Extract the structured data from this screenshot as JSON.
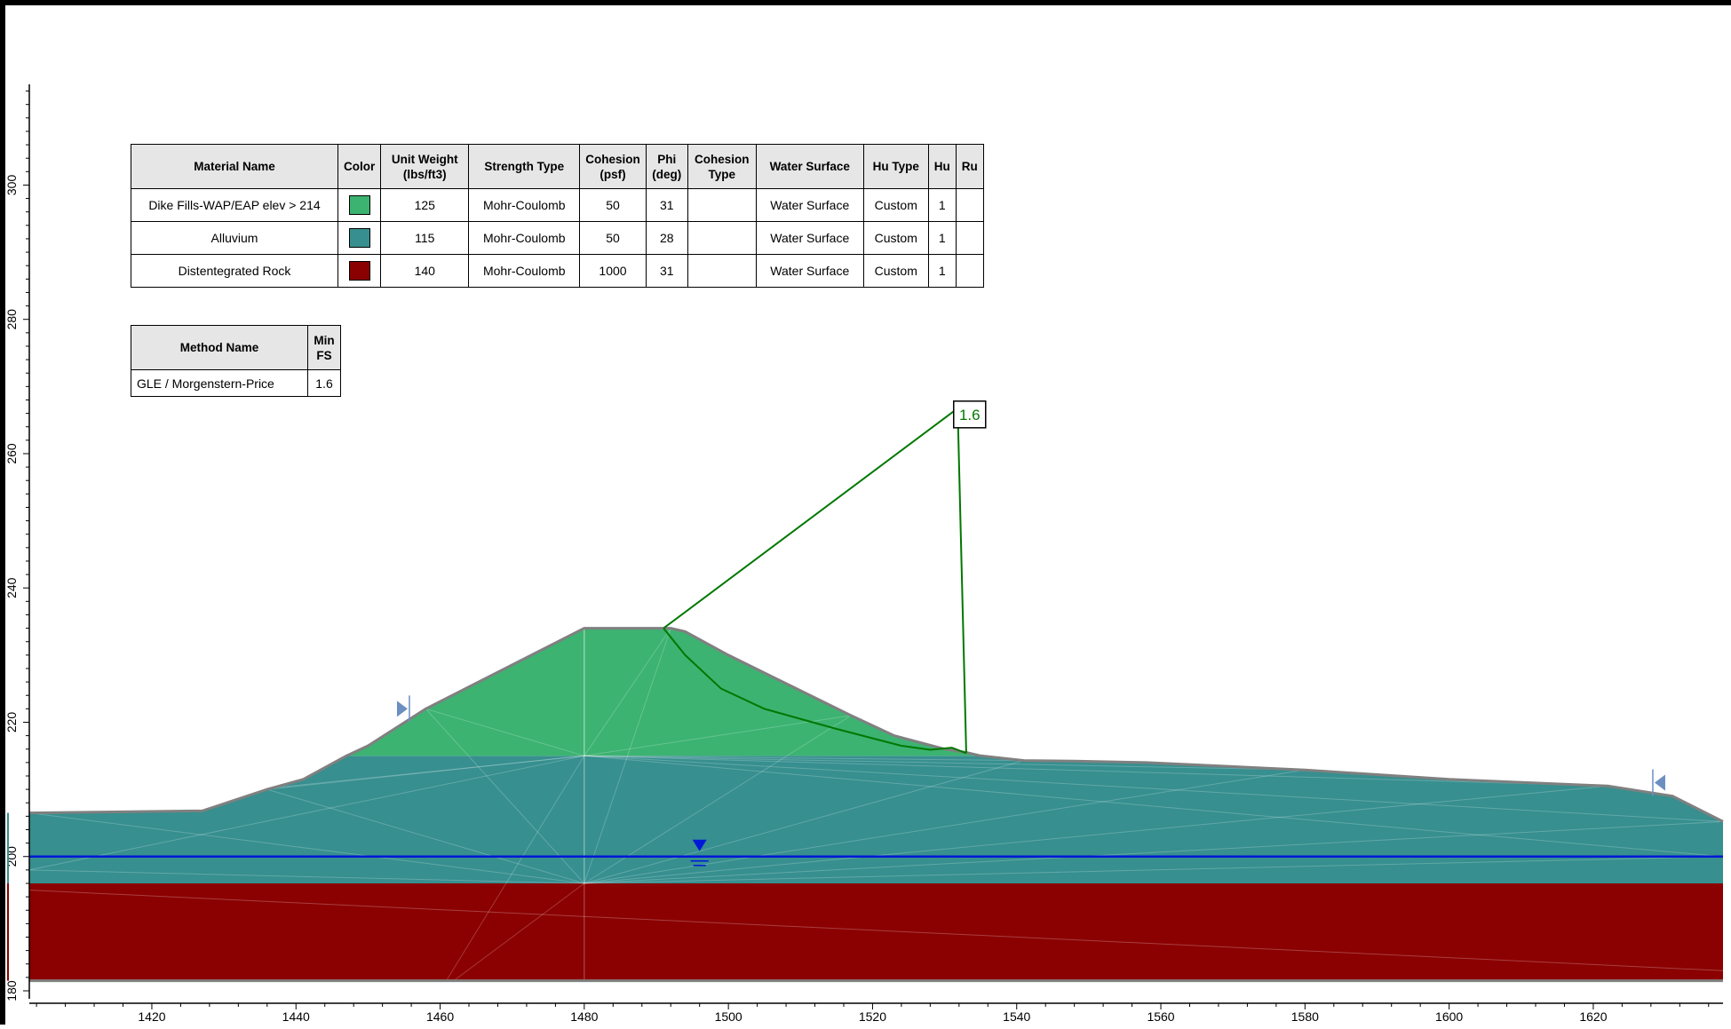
{
  "materials_table": {
    "headers": [
      "Material Name",
      "Color",
      "Unit Weight\n(lbs/ft3)",
      "Strength Type",
      "Cohesion\n(psf)",
      "Phi\n(deg)",
      "Cohesion\nType",
      "Water Surface",
      "Hu Type",
      "Hu",
      "Ru"
    ],
    "rows": [
      {
        "name": "Dike Fills-WAP/EAP elev > 214",
        "color": "#3cb371",
        "unit_weight": "125",
        "strength_type": "Mohr-Coulomb",
        "cohesion": "50",
        "phi": "31",
        "cohesion_type": "",
        "water_surface": "Water Surface",
        "hu_type": "Custom",
        "hu": "1",
        "ru": ""
      },
      {
        "name": "Alluvium",
        "color": "#378f8f",
        "unit_weight": "115",
        "strength_type": "Mohr-Coulomb",
        "cohesion": "50",
        "phi": "28",
        "cohesion_type": "",
        "water_surface": "Water Surface",
        "hu_type": "Custom",
        "hu": "1",
        "ru": ""
      },
      {
        "name": "Distentegrated Rock",
        "color": "#8b0000",
        "unit_weight": "140",
        "strength_type": "Mohr-Coulomb",
        "cohesion": "1000",
        "phi": "31",
        "cohesion_type": "",
        "water_surface": "Water Surface",
        "hu_type": "Custom",
        "hu": "1",
        "ru": ""
      }
    ]
  },
  "methods_table": {
    "headers": [
      "Method Name",
      "Min\nFS"
    ],
    "rows": [
      {
        "method": "GLE / Morgenstern-Price",
        "min_fs": "1.6"
      }
    ]
  },
  "fs_label": "1.6",
  "x_axis": {
    "ticks": [
      1420,
      1440,
      1460,
      1480,
      1500,
      1520,
      1540,
      1560,
      1580,
      1600,
      1620
    ],
    "range": [
      1403,
      1638
    ]
  },
  "y_axis": {
    "ticks": [
      180,
      200,
      220,
      240,
      260,
      280,
      300
    ],
    "range": [
      180,
      315
    ]
  },
  "model": {
    "surface": [
      [
        1403,
        206.5
      ],
      [
        1427,
        206.8
      ],
      [
        1436,
        210
      ],
      [
        1441,
        211.5
      ],
      [
        1447,
        215
      ],
      [
        1450,
        216.5
      ],
      [
        1458,
        222
      ],
      [
        1480,
        234
      ],
      [
        1492,
        234
      ],
      [
        1494,
        233.5
      ],
      [
        1500,
        230
      ],
      [
        1517,
        221
      ],
      [
        1523,
        218
      ],
      [
        1530,
        216
      ],
      [
        1533,
        215.5
      ],
      [
        1535,
        215
      ],
      [
        1541,
        214.3
      ],
      [
        1548,
        214.2
      ],
      [
        1558,
        214
      ],
      [
        1580,
        212.9
      ],
      [
        1600,
        211.5
      ],
      [
        1622,
        210.5
      ],
      [
        1631,
        209
      ],
      [
        1638,
        205.2
      ]
    ],
    "fill_alluvium_boundary": [
      [
        1447,
        215
      ],
      [
        1536,
        215
      ]
    ],
    "rock_top": 196,
    "water_level": 200,
    "slip_surface": [
      [
        1491,
        234
      ],
      [
        1494,
        230
      ],
      [
        1499,
        225
      ],
      [
        1505,
        222
      ],
      [
        1515,
        219
      ],
      [
        1524,
        216.5
      ],
      [
        1528,
        215.9
      ],
      [
        1531,
        216.2
      ],
      [
        1533,
        215.4
      ]
    ],
    "slip_center": [
      1531.5,
      266.5
    ],
    "water_marker_x": 1496,
    "limit_markers": [
      [
        1455,
        222
      ],
      [
        1629,
        211
      ]
    ]
  },
  "colors": {
    "fill": "#3cb371",
    "alluvium": "#378f8f",
    "rock": "#8b0000",
    "water": "#0018d8",
    "slip": "#007800",
    "outline": "#808080"
  }
}
